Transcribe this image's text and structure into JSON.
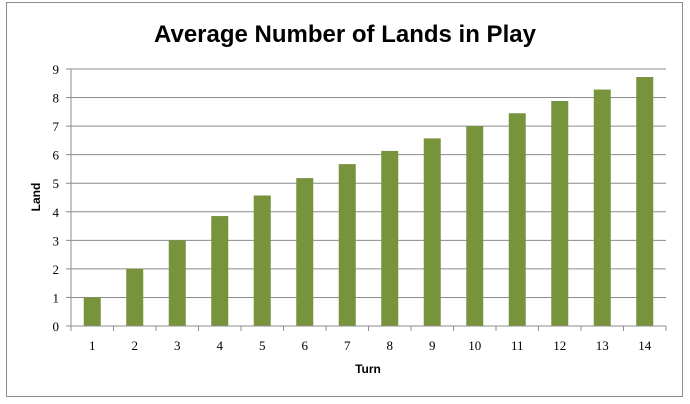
{
  "chart_data": {
    "type": "bar",
    "title": "Average Number of Lands in Play",
    "xlabel": "Turn",
    "ylabel": "Land",
    "categories": [
      "1",
      "2",
      "3",
      "4",
      "5",
      "6",
      "7",
      "8",
      "9",
      "10",
      "11",
      "12",
      "13",
      "14"
    ],
    "values": [
      1.0,
      2.0,
      3.0,
      3.85,
      4.57,
      5.18,
      5.67,
      6.13,
      6.57,
      7.0,
      7.45,
      7.88,
      8.28,
      8.72
    ],
    "ylim": [
      0,
      9
    ],
    "yticks": [
      "0",
      "1",
      "2",
      "3",
      "4",
      "5",
      "6",
      "7",
      "8",
      "9"
    ],
    "grid": true,
    "legend": "none",
    "bar_color": "#77933c"
  }
}
